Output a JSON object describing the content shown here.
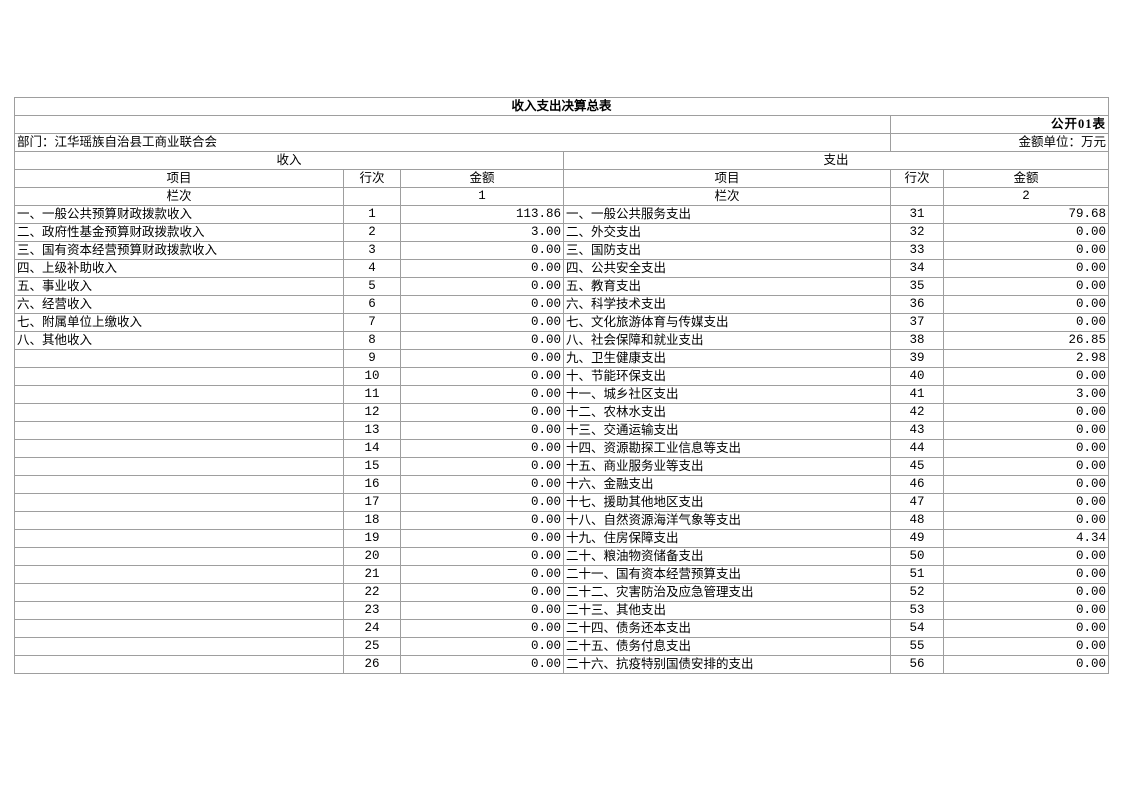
{
  "table": {
    "title": "收入支出决算总表",
    "sheet_label": "公开01表",
    "department": "部门：江华瑶族自治县工商业联合会",
    "unit": "金额单位：万元",
    "colors": {
      "grid": "#9e9e9e",
      "heavy_rule": "#000000",
      "text": "#000000",
      "background": "#ffffff"
    },
    "income": {
      "section_title": "收入",
      "col_item": "项目",
      "col_line": "行次",
      "col_amount": "金额",
      "lan_ci": "栏次",
      "col_index": "1",
      "rows": [
        {
          "item": "一、一般公共预算财政拨款收入",
          "line": "1",
          "amount": "113.86"
        },
        {
          "item": "二、政府性基金预算财政拨款收入",
          "line": "2",
          "amount": "3.00"
        },
        {
          "item": "三、国有资本经营预算财政拨款收入",
          "line": "3",
          "amount": "0.00"
        },
        {
          "item": "四、上级补助收入",
          "line": "4",
          "amount": "0.00"
        },
        {
          "item": "五、事业收入",
          "line": "5",
          "amount": "0.00"
        },
        {
          "item": "六、经营收入",
          "line": "6",
          "amount": "0.00"
        },
        {
          "item": "七、附属单位上缴收入",
          "line": "7",
          "amount": "0.00"
        },
        {
          "item": "八、其他收入",
          "line": "8",
          "amount": "0.00"
        },
        {
          "item": "",
          "line": "9",
          "amount": "0.00"
        },
        {
          "item": "",
          "line": "10",
          "amount": "0.00"
        },
        {
          "item": "",
          "line": "11",
          "amount": "0.00"
        },
        {
          "item": "",
          "line": "12",
          "amount": "0.00"
        },
        {
          "item": "",
          "line": "13",
          "amount": "0.00"
        },
        {
          "item": "",
          "line": "14",
          "amount": "0.00"
        },
        {
          "item": "",
          "line": "15",
          "amount": "0.00"
        },
        {
          "item": "",
          "line": "16",
          "amount": "0.00"
        },
        {
          "item": "",
          "line": "17",
          "amount": "0.00"
        },
        {
          "item": "",
          "line": "18",
          "amount": "0.00"
        },
        {
          "item": "",
          "line": "19",
          "amount": "0.00"
        },
        {
          "item": "",
          "line": "20",
          "amount": "0.00"
        },
        {
          "item": "",
          "line": "21",
          "amount": "0.00"
        },
        {
          "item": "",
          "line": "22",
          "amount": "0.00"
        },
        {
          "item": "",
          "line": "23",
          "amount": "0.00"
        },
        {
          "item": "",
          "line": "24",
          "amount": "0.00"
        },
        {
          "item": "",
          "line": "25",
          "amount": "0.00"
        },
        {
          "item": "",
          "line": "26",
          "amount": "0.00"
        }
      ]
    },
    "expense": {
      "section_title": "支出",
      "col_item": "项目",
      "col_line": "行次",
      "col_amount": "金额",
      "lan_ci": "栏次",
      "col_index": "2",
      "rows": [
        {
          "item": "一、一般公共服务支出",
          "line": "31",
          "amount": "79.68"
        },
        {
          "item": "二、外交支出",
          "line": "32",
          "amount": "0.00"
        },
        {
          "item": "三、国防支出",
          "line": "33",
          "amount": "0.00"
        },
        {
          "item": "四、公共安全支出",
          "line": "34",
          "amount": "0.00"
        },
        {
          "item": "五、教育支出",
          "line": "35",
          "amount": "0.00"
        },
        {
          "item": "六、科学技术支出",
          "line": "36",
          "amount": "0.00"
        },
        {
          "item": "七、文化旅游体育与传媒支出",
          "line": "37",
          "amount": "0.00"
        },
        {
          "item": "八、社会保障和就业支出",
          "line": "38",
          "amount": "26.85"
        },
        {
          "item": "九、卫生健康支出",
          "line": "39",
          "amount": "2.98"
        },
        {
          "item": "十、节能环保支出",
          "line": "40",
          "amount": "0.00"
        },
        {
          "item": "十一、城乡社区支出",
          "line": "41",
          "amount": "3.00"
        },
        {
          "item": "十二、农林水支出",
          "line": "42",
          "amount": "0.00"
        },
        {
          "item": "十三、交通运输支出",
          "line": "43",
          "amount": "0.00"
        },
        {
          "item": "十四、资源勘探工业信息等支出",
          "line": "44",
          "amount": "0.00"
        },
        {
          "item": "十五、商业服务业等支出",
          "line": "45",
          "amount": "0.00"
        },
        {
          "item": "十六、金融支出",
          "line": "46",
          "amount": "0.00"
        },
        {
          "item": "十七、援助其他地区支出",
          "line": "47",
          "amount": "0.00"
        },
        {
          "item": "十八、自然资源海洋气象等支出",
          "line": "48",
          "amount": "0.00"
        },
        {
          "item": "十九、住房保障支出",
          "line": "49",
          "amount": "4.34"
        },
        {
          "item": "二十、粮油物资储备支出",
          "line": "50",
          "amount": "0.00"
        },
        {
          "item": "二十一、国有资本经营预算支出",
          "line": "51",
          "amount": "0.00"
        },
        {
          "item": "二十二、灾害防治及应急管理支出",
          "line": "52",
          "amount": "0.00"
        },
        {
          "item": "二十三、其他支出",
          "line": "53",
          "amount": "0.00"
        },
        {
          "item": "二十四、债务还本支出",
          "line": "54",
          "amount": "0.00"
        },
        {
          "item": "二十五、债务付息支出",
          "line": "55",
          "amount": "0.00"
        },
        {
          "item": "二十六、抗疫特别国债安排的支出",
          "line": "56",
          "amount": "0.00"
        }
      ]
    }
  }
}
